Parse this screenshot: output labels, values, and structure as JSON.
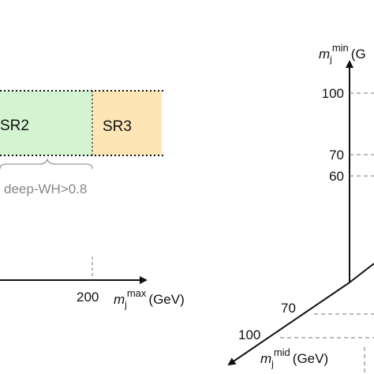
{
  "regions": [
    {
      "label": "SR2",
      "color": "#3fae4f"
    },
    {
      "label": "SR3",
      "color": "#d4892e"
    }
  ],
  "brace_label": "deep-WH>0.8",
  "x_axis": {
    "tick": "200",
    "label": {
      "symbol": "m",
      "subscript": "j",
      "superscript": "max",
      "unit": "(GeV)"
    }
  },
  "y_axis": {
    "ticks": [
      "100",
      "70",
      "60"
    ],
    "label": {
      "symbol": "m",
      "subscript": "j",
      "superscript": "min",
      "unit": "(G"
    }
  },
  "z_axis": {
    "ticks": [
      "70",
      "100"
    ],
    "label": {
      "symbol": "m",
      "subscript": "j",
      "superscript": "mid",
      "unit": "(GeV)"
    }
  }
}
